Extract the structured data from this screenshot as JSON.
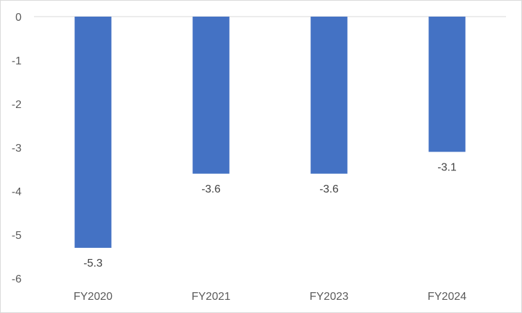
{
  "chart_data": {
    "type": "bar",
    "categories": [
      "FY2020",
      "FY2021",
      "FY2023",
      "FY2024"
    ],
    "values": [
      -5.3,
      -3.6,
      -3.6,
      -3.1
    ],
    "data_labels": [
      "-5.3",
      "-3.6",
      "-3.6",
      "-3.1"
    ],
    "title": "",
    "xlabel": "",
    "ylabel": "",
    "ylim": [
      -6,
      0
    ],
    "yticks": [
      0,
      -1,
      -2,
      -3,
      -4,
      -5,
      -6
    ],
    "ytick_labels": [
      "0",
      "-1",
      "-2",
      "-3",
      "-4",
      "-5",
      "-6"
    ],
    "grid": false,
    "legend": "none",
    "bar_color": "#4472C4",
    "axis_color": "#d9d9d9"
  }
}
